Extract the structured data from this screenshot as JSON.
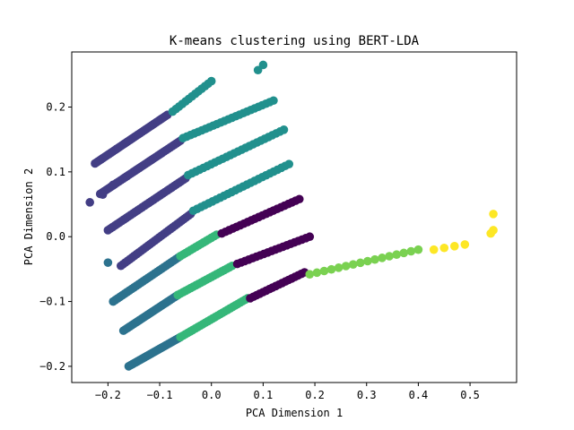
{
  "chart_data": {
    "type": "scatter",
    "title": "K-means clustering using BERT-LDA",
    "xlabel": "PCA Dimension 1",
    "ylabel": "PCA Dimension 2",
    "xlim": [
      -0.27,
      0.59
    ],
    "ylim": [
      -0.225,
      0.285
    ],
    "xticks": [
      -0.2,
      -0.1,
      0.0,
      0.1,
      0.2,
      0.3,
      0.4,
      0.5
    ],
    "xtick_labels": [
      "−0.2",
      "−0.1",
      "0.0",
      "0.1",
      "0.2",
      "0.3",
      "0.4",
      "0.5"
    ],
    "yticks": [
      -0.2,
      -0.1,
      0.0,
      0.1,
      0.2
    ],
    "ytick_labels": [
      "−0.2",
      "−0.1",
      "0.0",
      "0.1",
      "0.2"
    ],
    "grid": false,
    "legend": false,
    "colormap": "viridis",
    "segments": [
      {
        "cluster": 1,
        "color": "#433e85",
        "from": [
          -0.225,
          0.113
        ],
        "to": [
          -0.085,
          0.188
        ],
        "n": 38
      },
      {
        "cluster": 3,
        "color": "#21908d",
        "from": [
          -0.075,
          0.193
        ],
        "to": [
          0.0,
          0.24
        ],
        "n": 13
      },
      {
        "cluster": 3,
        "color": "#21908d",
        "from": [
          0.09,
          0.257
        ],
        "to": [
          0.1,
          0.265
        ],
        "n": 2
      },
      {
        "cluster": 1,
        "color": "#433e85",
        "from": [
          -0.215,
          0.066
        ],
        "to": [
          -0.06,
          0.148
        ],
        "n": 40
      },
      {
        "cluster": 3,
        "color": "#21908d",
        "from": [
          -0.055,
          0.152
        ],
        "to": [
          0.12,
          0.21
        ],
        "n": 25
      },
      {
        "cluster": 1,
        "color": "#433e85",
        "from": [
          -0.2,
          0.01
        ],
        "to": [
          -0.05,
          0.09
        ],
        "n": 35
      },
      {
        "cluster": 3,
        "color": "#21908d",
        "from": [
          -0.045,
          0.095
        ],
        "to": [
          0.14,
          0.165
        ],
        "n": 26
      },
      {
        "cluster": 1,
        "color": "#433e85",
        "from": [
          -0.175,
          -0.045
        ],
        "to": [
          -0.04,
          0.035
        ],
        "n": 32
      },
      {
        "cluster": 3,
        "color": "#21908d",
        "from": [
          -0.035,
          0.04
        ],
        "to": [
          0.15,
          0.112
        ],
        "n": 26
      },
      {
        "cluster": 2,
        "color": "#2c728e",
        "from": [
          -0.19,
          -0.1
        ],
        "to": [
          -0.06,
          -0.03
        ],
        "n": 30
      },
      {
        "cluster": 4,
        "color": "#35b779",
        "from": [
          -0.06,
          -0.03
        ],
        "to": [
          0.01,
          0.003
        ],
        "n": 15
      },
      {
        "cluster": 0,
        "color": "#440154",
        "from": [
          0.02,
          0.005
        ],
        "to": [
          0.17,
          0.058
        ],
        "n": 22
      },
      {
        "cluster": 2,
        "color": "#2c728e",
        "from": [
          -0.17,
          -0.145
        ],
        "to": [
          -0.065,
          -0.09
        ],
        "n": 28
      },
      {
        "cluster": 4,
        "color": "#35b779",
        "from": [
          -0.065,
          -0.09
        ],
        "to": [
          0.04,
          -0.045
        ],
        "n": 22
      },
      {
        "cluster": 0,
        "color": "#440154",
        "from": [
          0.05,
          -0.042
        ],
        "to": [
          0.19,
          0.0
        ],
        "n": 20
      },
      {
        "cluster": 2,
        "color": "#2c728e",
        "from": [
          -0.16,
          -0.2
        ],
        "to": [
          -0.06,
          -0.155
        ],
        "n": 30
      },
      {
        "cluster": 4,
        "color": "#35b779",
        "from": [
          -0.06,
          -0.155
        ],
        "to": [
          0.07,
          -0.095
        ],
        "n": 28
      },
      {
        "cluster": 0,
        "color": "#440154",
        "from": [
          0.075,
          -0.095
        ],
        "to": [
          0.18,
          -0.055
        ],
        "n": 18
      },
      {
        "cluster": 5,
        "color": "#7ad151",
        "from": [
          0.19,
          -0.058
        ],
        "to": [
          0.4,
          -0.02
        ],
        "n": 16
      },
      {
        "cluster": 6,
        "color": "#fde725",
        "from": [
          0.43,
          -0.02
        ],
        "to": [
          0.49,
          -0.012
        ],
        "n": 4
      },
      {
        "cluster": 6,
        "color": "#fde725",
        "from": [
          0.54,
          0.005
        ],
        "to": [
          0.545,
          0.01
        ],
        "n": 2
      },
      {
        "cluster": 6,
        "color": "#fde725",
        "from": [
          0.545,
          0.035
        ],
        "to": [
          0.545,
          0.035
        ],
        "n": 1
      }
    ],
    "isolated_points": [
      {
        "x": -0.235,
        "y": 0.053,
        "color": "#433e85"
      },
      {
        "x": -0.21,
        "y": 0.065,
        "color": "#433e85"
      },
      {
        "x": -0.19,
        "y": 0.08,
        "color": "#433e85"
      },
      {
        "x": -0.2,
        "y": -0.04,
        "color": "#2c728e"
      }
    ]
  }
}
